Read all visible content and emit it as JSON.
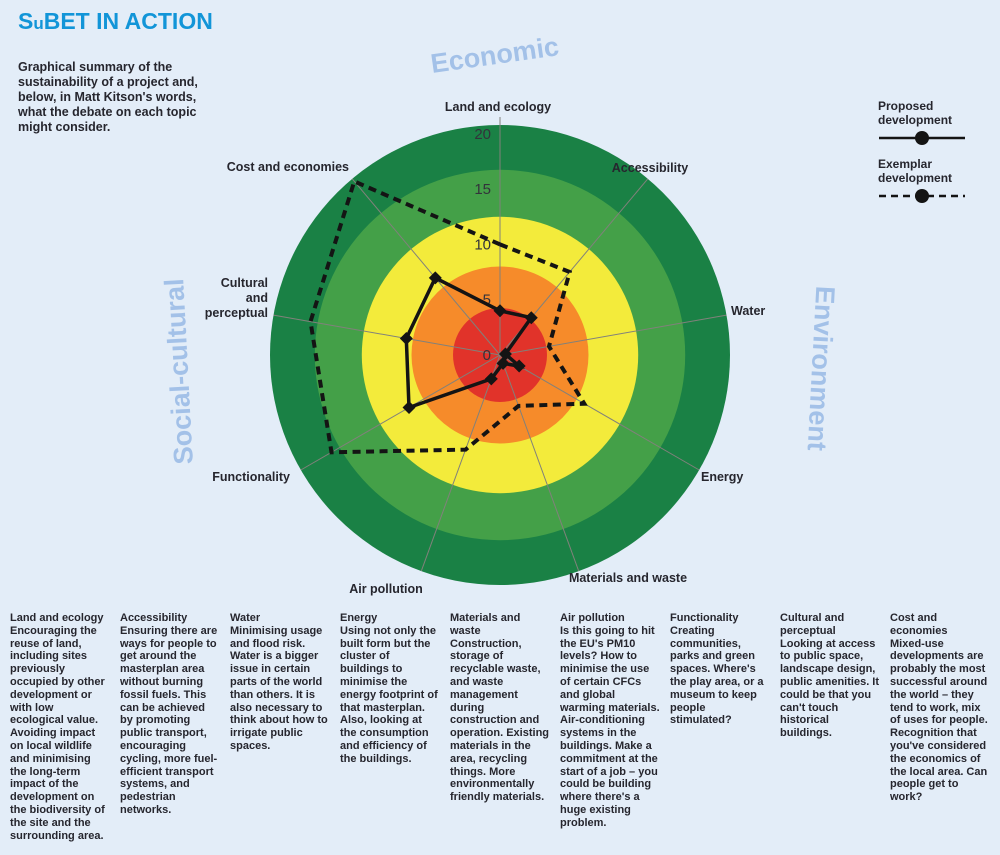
{
  "header": {
    "title_parts": [
      "S",
      "u",
      "BET IN ACTION"
    ],
    "intro": "Graphical summary of the sustainability of a project and, below, in Matt Kitson's words, what the debate on each topic might consider."
  },
  "legend": {
    "items": [
      {
        "label": "Proposed development",
        "style": "solid"
      },
      {
        "label": "Exemplar development",
        "style": "dashed"
      }
    ]
  },
  "chart_data": {
    "type": "radar",
    "axes": [
      "Land and ecology",
      "Accessibility",
      "Water",
      "Energy",
      "Materials and waste",
      "Air pollution",
      "Functionality",
      "Cultural and perceptual",
      "Cost and economies"
    ],
    "series": [
      {
        "name": "Proposed development",
        "style": "solid",
        "values": [
          4,
          4.4,
          0.5,
          2,
          0.8,
          2.3,
          9.5,
          8.6,
          9.1
        ]
      },
      {
        "name": "Exemplar development",
        "style": "dashed",
        "values": [
          10,
          9.8,
          4.5,
          8.8,
          4.9,
          9.1,
          17.6,
          17.4,
          20.5
        ]
      }
    ],
    "ticks": [
      0,
      5,
      10,
      15,
      20
    ],
    "rlim": [
      0,
      20.8
    ],
    "rings": [
      {
        "color": "#e1332a",
        "to": 4.25
      },
      {
        "color": "#f68b2a",
        "to": 8.0
      },
      {
        "color": "#f3eb3b",
        "to": 12.5
      },
      {
        "color": "#44a048",
        "to": 16.75
      },
      {
        "color": "#1a8145",
        "to": 20.8
      }
    ],
    "quadrant_labels": [
      "Economic",
      "Environment",
      "Social-cultural"
    ],
    "line_color": "#141414",
    "spoke_color": "#81817b",
    "tick_color": "#33333b",
    "axis_label_color": "#26262e",
    "quadrant_label_color": "#a3c1e8",
    "legend_position": "top-right"
  },
  "topics": [
    {
      "heading": "Land and ecology",
      "body": "Encouraging the reuse of land, including sites previously occupied by other development or with low ecological value. Avoiding impact on local wildlife and minimising the long-term impact of the development on the biodiversity of the site and the surrounding area."
    },
    {
      "heading": "Accessibility",
      "body": "Ensuring there are ways for people to get around the masterplan area without burning fossil fuels. This can be achieved by promoting public transport, encouraging cycling, more fuel-efficient transport systems, and pedestrian networks."
    },
    {
      "heading": "Water",
      "body": "Minimising usage and flood risk. Water is a bigger issue in certain parts of the world than others. It is also necessary to think about how to irrigate public spaces."
    },
    {
      "heading": "Energy",
      "body": "Using not only the built form but the cluster of buildings to minimise the energy footprint of that masterplan. Also, looking at the consumption and efficiency of the buildings."
    },
    {
      "heading": "Materials and waste",
      "body": "Construction, storage of recyclable waste, and waste management during construction and operation. Existing materials in the area, recycling things. More environmentally friendly materials."
    },
    {
      "heading": "Air pollution",
      "body": "Is this going to hit the EU's PM10 levels? How to minimise the use of certain CFCs and global warming materials. Air-conditioning systems in the buildings. Make a commitment at the start of a job – you could be building where there's a huge existing problem."
    },
    {
      "heading": "Functionality",
      "body": "Creating communities, parks and green spaces. Where's the play area, or a museum to keep people stimulated?"
    },
    {
      "heading": "Cultural and perceptual",
      "body": "Looking at access to public space, landscape design, public amenities. It could be that you can't touch historical buildings."
    },
    {
      "heading": "Cost and economies",
      "body": "Mixed-use developments are probably the most successful around the world – they tend to work, mix of uses for people. Recognition that you've considered the economics of the local area. Can people get to work?"
    }
  ]
}
